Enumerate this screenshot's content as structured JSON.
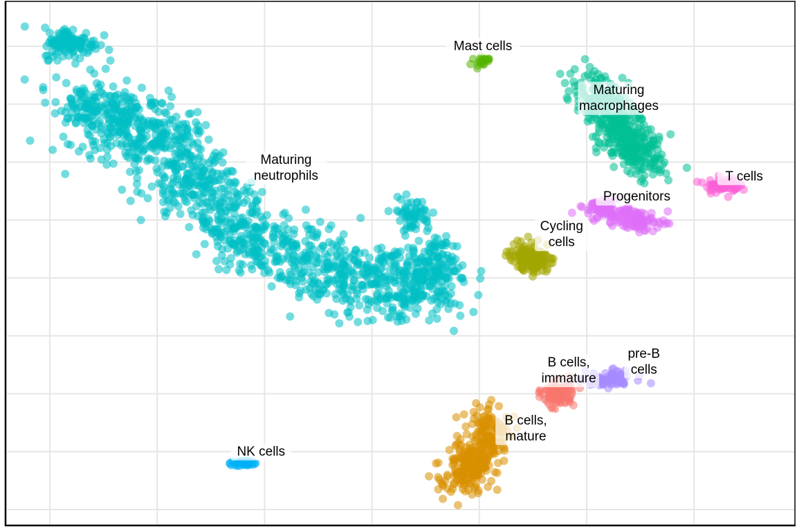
{
  "chart_data": {
    "type": "scatter",
    "title": "",
    "xlabel": "",
    "ylabel": "",
    "grid": true,
    "legend": "none",
    "xlim": [
      0,
      11
    ],
    "ylim": [
      0,
      9
    ],
    "x_gridlines": [
      0.6,
      2.1,
      3.6,
      5.1,
      6.6,
      8.1,
      9.6
    ],
    "y_gridlines": [
      0.25,
      1.25,
      2.25,
      3.25,
      4.25,
      5.25,
      6.25,
      7.25,
      8.25
    ],
    "clusters": [
      {
        "name": "Maturing neutrophils",
        "label": [
          "Maturing",
          "neutrophils"
        ],
        "color": "#00bfc4",
        "label_pos": [
          3.9,
          6.15
        ],
        "points": 1400,
        "spine": [
          [
            1.0,
            7.2
          ],
          [
            1.7,
            7.0
          ],
          [
            2.5,
            6.1
          ],
          [
            3.2,
            5.1
          ],
          [
            4.2,
            4.5
          ],
          [
            5.3,
            4.1
          ],
          [
            6.1,
            4.3
          ]
        ],
        "spread_x": 0.55,
        "spread_y": 0.55,
        "extra_blobs": [
          [
            0.9,
            8.3,
            0.35,
            0.25,
            120
          ],
          [
            5.65,
            5.35,
            0.25,
            0.25,
            60
          ],
          [
            6.0,
            4.8,
            0.2,
            0.2,
            30
          ]
        ]
      },
      {
        "name": "Mast cells",
        "label": [
          "Mast cells"
        ],
        "color": "#53b400",
        "label_pos": [
          6.65,
          8.25
        ],
        "points": 20,
        "spine": [
          [
            6.63,
            8.0
          ]
        ],
        "spread_x": 0.1,
        "spread_y": 0.08
      },
      {
        "name": "Maturing macrophages",
        "label": [
          "Maturing",
          "macrophages"
        ],
        "color": "#00c094",
        "label_pos": [
          8.55,
          7.35
        ],
        "points": 420,
        "spine": [
          [
            8.1,
            7.6
          ],
          [
            8.45,
            7.1
          ],
          [
            8.7,
            6.55
          ],
          [
            8.95,
            6.2
          ]
        ],
        "spread_x": 0.32,
        "spread_y": 0.3
      },
      {
        "name": "T cells",
        "label": [
          "T cells"
        ],
        "color": "#fb61d7",
        "label_pos": [
          10.3,
          6.0
        ],
        "points": 70,
        "spine": [
          [
            10.0,
            5.85
          ]
        ],
        "spread_x": 0.22,
        "spread_y": 0.12
      },
      {
        "name": "Progenitors",
        "label": [
          "Progenitors"
        ],
        "color": "#df70f8",
        "label_pos": [
          8.8,
          5.65
        ],
        "points": 170,
        "spine": [
          [
            8.2,
            5.5
          ],
          [
            8.6,
            5.35
          ],
          [
            9.0,
            5.15
          ]
        ],
        "spread_x": 0.25,
        "spread_y": 0.15
      },
      {
        "name": "Cycling cells",
        "label": [
          "Cycling",
          "cells"
        ],
        "color": "#a3a500",
        "label_pos": [
          7.75,
          5.0
        ],
        "points": 150,
        "spine": [
          [
            7.2,
            4.65
          ],
          [
            7.45,
            4.55
          ]
        ],
        "spread_x": 0.22,
        "spread_y": 0.2
      },
      {
        "name": "pre-B cells",
        "label": [
          "pre-B",
          "cells"
        ],
        "color": "#a58aff",
        "label_pos": [
          8.9,
          2.8
        ],
        "points": 90,
        "spine": [
          [
            8.2,
            2.45
          ],
          [
            8.6,
            2.55
          ]
        ],
        "spread_x": 0.28,
        "spread_y": 0.1
      },
      {
        "name": "B cells, immature",
        "label": [
          "B cells,",
          "immature"
        ],
        "color": "#f8766d",
        "label_pos": [
          7.85,
          2.65
        ],
        "points": 110,
        "spine": [
          [
            7.7,
            2.25
          ]
        ],
        "spread_x": 0.2,
        "spread_y": 0.2
      },
      {
        "name": "B cells, mature",
        "label": [
          "B cells,",
          "mature"
        ],
        "color": "#d89000",
        "label_pos": [
          7.25,
          1.65
        ],
        "points": 320,
        "spine": [
          [
            6.8,
            1.85
          ],
          [
            6.55,
            1.15
          ],
          [
            6.3,
            0.7
          ]
        ],
        "spread_x": 0.3,
        "spread_y": 0.28
      },
      {
        "name": "NK cells",
        "label": [
          "NK cells"
        ],
        "color": "#00b0f6",
        "label_pos": [
          3.55,
          1.25
        ],
        "points": 35,
        "spine": [
          [
            3.3,
            1.05
          ]
        ],
        "spread_x": 0.15,
        "spread_y": 0.05
      }
    ]
  }
}
